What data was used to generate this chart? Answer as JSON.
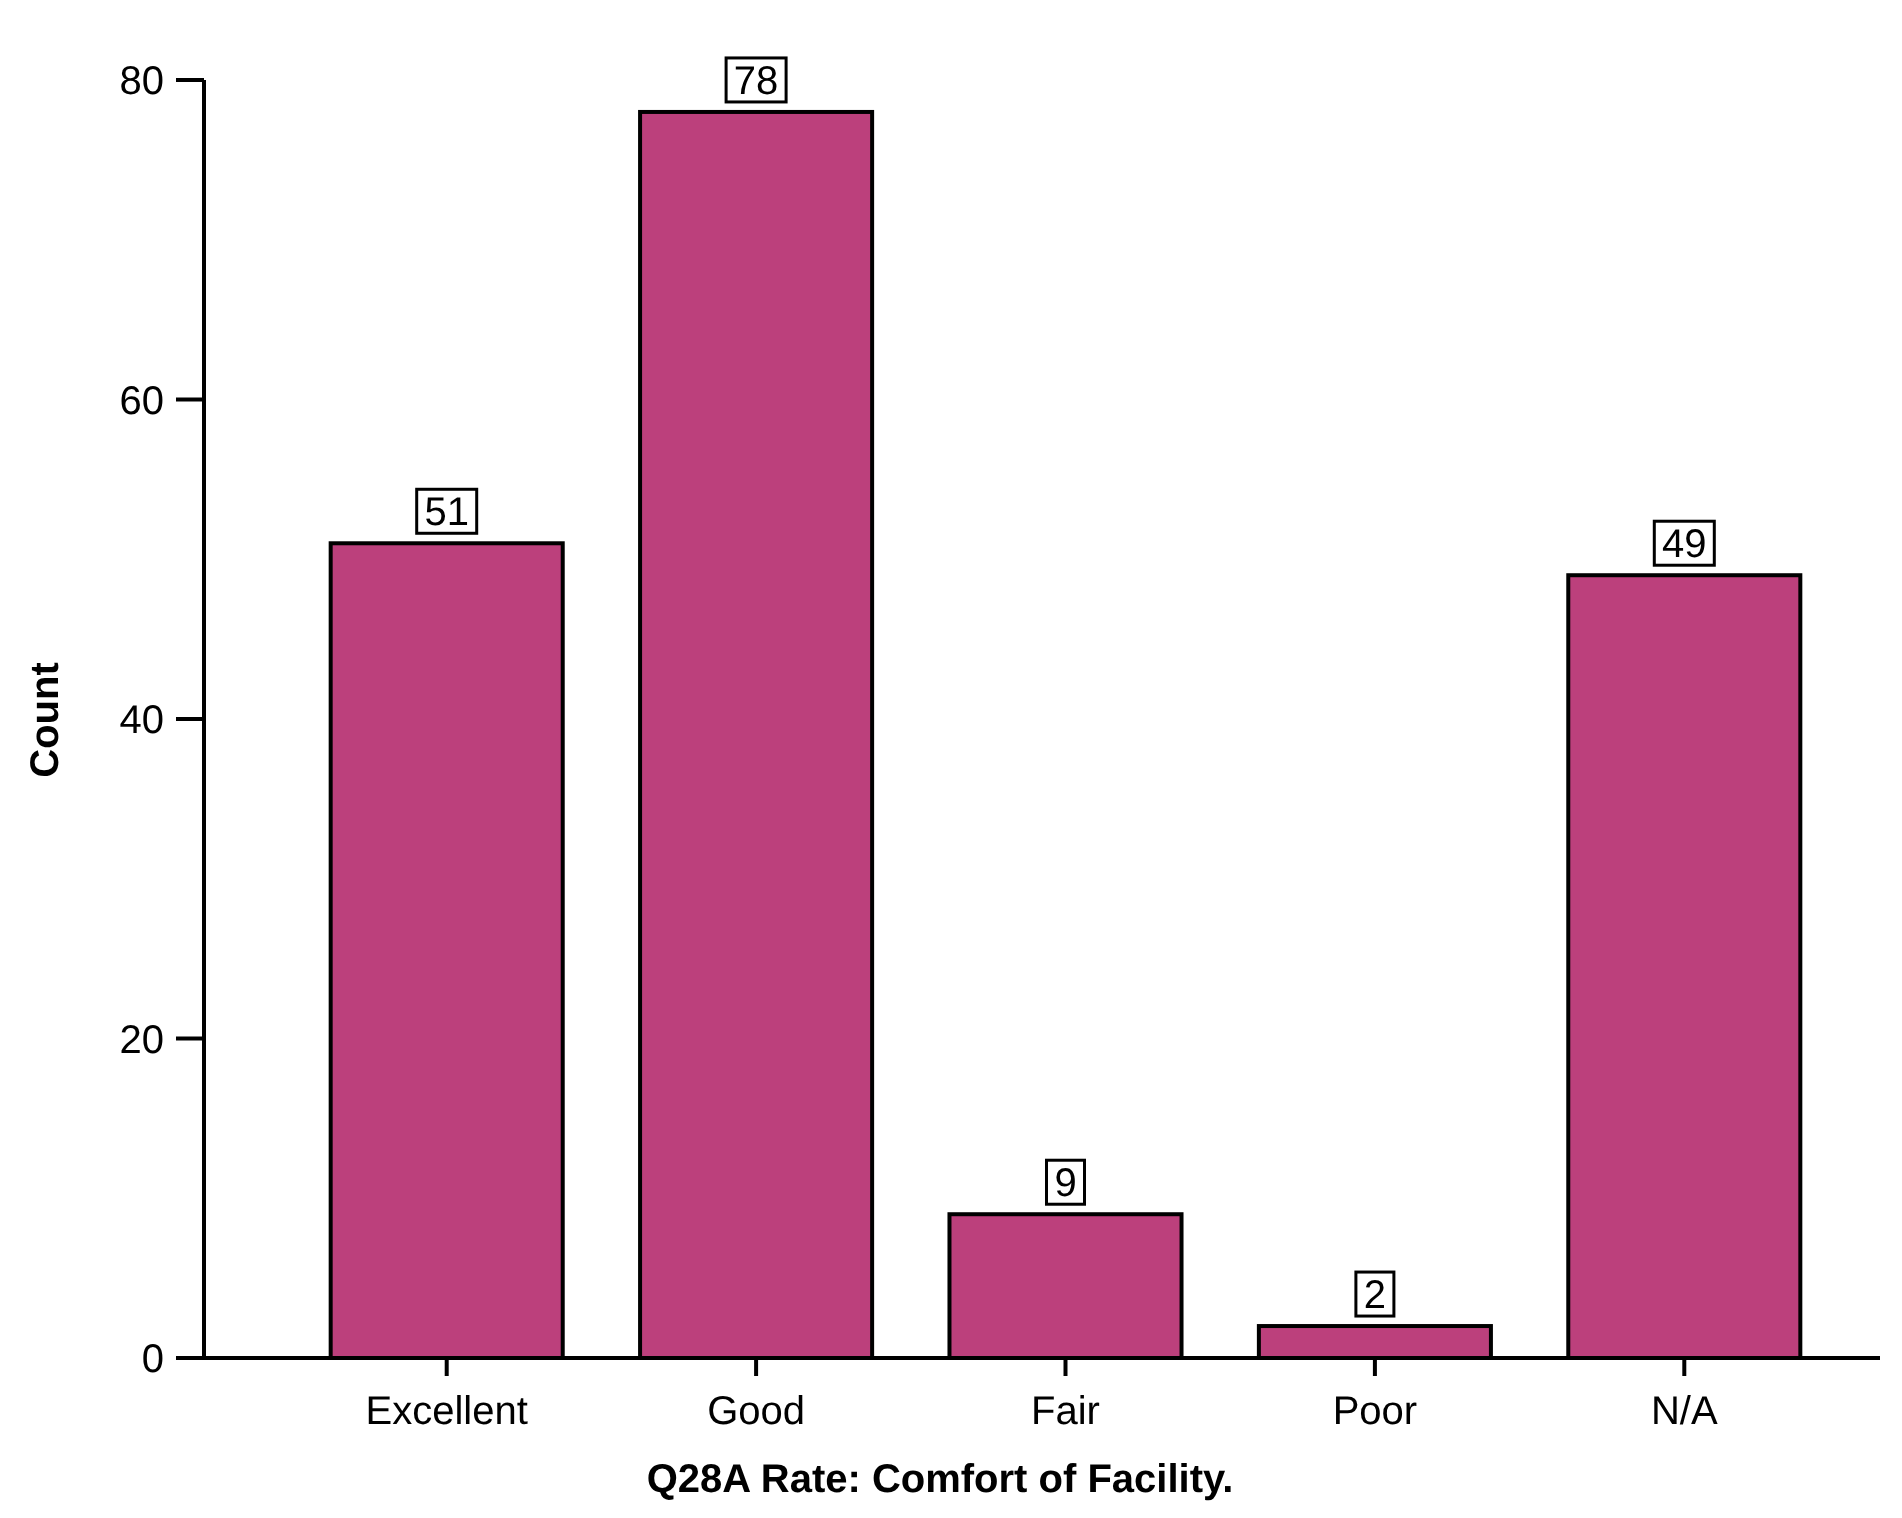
{
  "chart_data": {
    "type": "bar",
    "xlabel": "Q28A Rate: Comfort of Facility.",
    "ylabel": "Count",
    "categories": [
      "Excellent",
      "Good",
      "Fair",
      "Poor",
      "N/A"
    ],
    "values": [
      51,
      78,
      9,
      2,
      49
    ],
    "color": "#bc407c",
    "ylim": [
      0,
      80
    ],
    "yticks": [
      0,
      20,
      40,
      60,
      80
    ],
    "data_labels": true
  }
}
